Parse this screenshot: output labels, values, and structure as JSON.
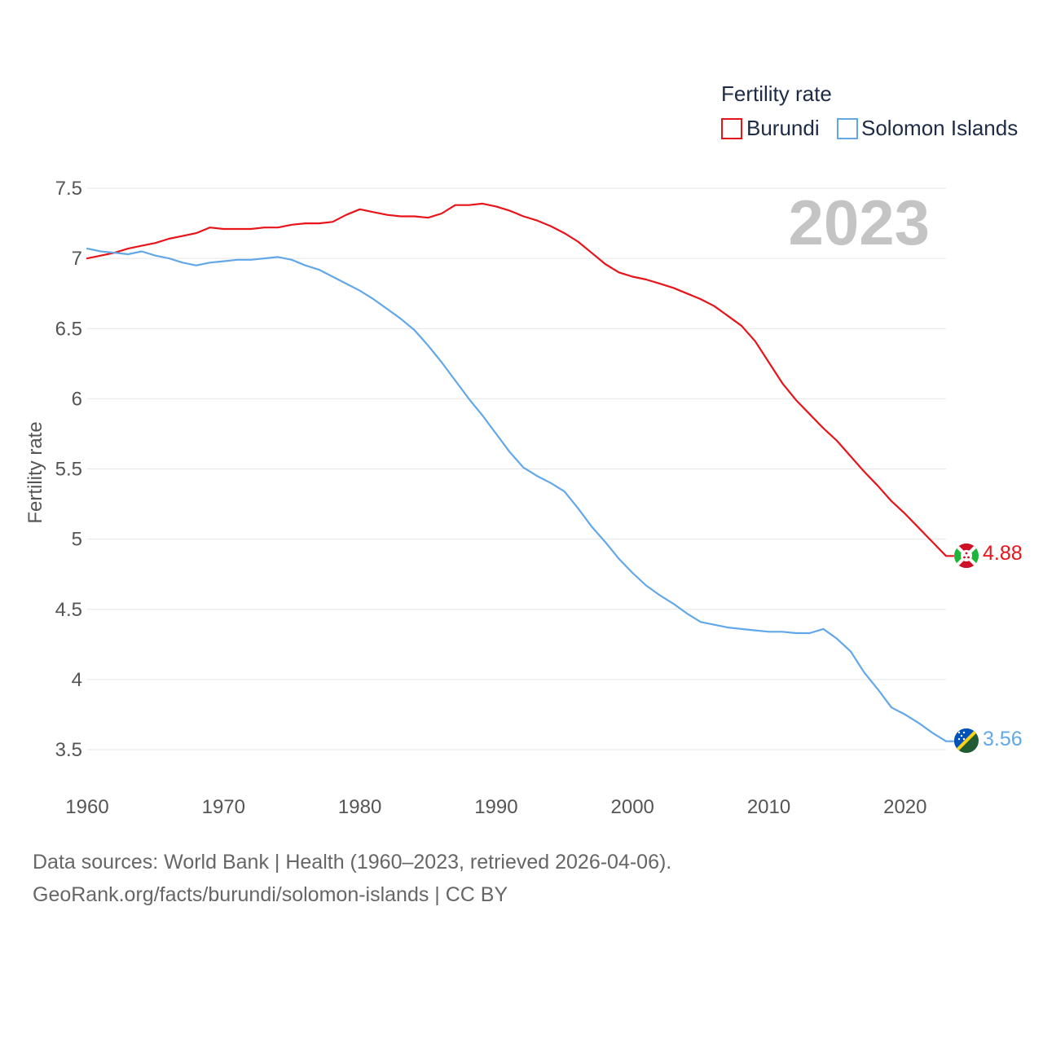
{
  "chart_data": {
    "type": "line",
    "title": "Fertility rate",
    "ylabel": "Fertility rate",
    "xlabel": "",
    "xlim": [
      1960,
      2023
    ],
    "ylim": [
      3.5,
      7.5
    ],
    "x_ticks": [
      1960,
      1970,
      1980,
      1990,
      2000,
      2010,
      2020
    ],
    "y_ticks": [
      3.5,
      4,
      4.5,
      5,
      5.5,
      6,
      6.5,
      7,
      7.5
    ],
    "y_tick_labels": [
      "3.5",
      "4",
      "4.5",
      "5",
      "5.5",
      "6",
      "6.5",
      "7",
      "7.5"
    ],
    "year_stamp": "2023",
    "legend_position": "top-right",
    "grid": true,
    "x": [
      1960,
      1961,
      1962,
      1963,
      1964,
      1965,
      1966,
      1967,
      1968,
      1969,
      1970,
      1971,
      1972,
      1973,
      1974,
      1975,
      1976,
      1977,
      1978,
      1979,
      1980,
      1981,
      1982,
      1983,
      1984,
      1985,
      1986,
      1987,
      1988,
      1989,
      1990,
      1991,
      1992,
      1993,
      1994,
      1995,
      1996,
      1997,
      1998,
      1999,
      2000,
      2001,
      2002,
      2003,
      2004,
      2005,
      2006,
      2007,
      2008,
      2009,
      2010,
      2011,
      2012,
      2013,
      2014,
      2015,
      2016,
      2017,
      2018,
      2019,
      2020,
      2021,
      2022,
      2023
    ],
    "series": [
      {
        "name": "Burundi",
        "color": "#e8141a",
        "end_label": "4.88",
        "flag": "burundi-flag-icon",
        "values": [
          7.0,
          7.02,
          7.04,
          7.07,
          7.09,
          7.11,
          7.14,
          7.16,
          7.18,
          7.22,
          7.21,
          7.21,
          7.21,
          7.22,
          7.22,
          7.24,
          7.25,
          7.25,
          7.26,
          7.31,
          7.35,
          7.33,
          7.31,
          7.3,
          7.3,
          7.29,
          7.32,
          7.38,
          7.38,
          7.39,
          7.37,
          7.34,
          7.3,
          7.27,
          7.23,
          7.18,
          7.12,
          7.04,
          6.96,
          6.9,
          6.87,
          6.85,
          6.82,
          6.79,
          6.75,
          6.71,
          6.66,
          6.59,
          6.52,
          6.41,
          6.26,
          6.11,
          5.99,
          5.89,
          5.79,
          5.7,
          5.59,
          5.48,
          5.38,
          5.27,
          5.18,
          5.08,
          4.98,
          4.88
        ]
      },
      {
        "name": "Solomon Islands",
        "color": "#62a8e8",
        "end_label": "3.56",
        "flag": "solomon-islands-flag-icon",
        "values": [
          7.07,
          7.05,
          7.04,
          7.03,
          7.05,
          7.02,
          7.0,
          6.97,
          6.95,
          6.97,
          6.98,
          6.99,
          6.99,
          7.0,
          7.01,
          6.99,
          6.95,
          6.92,
          6.87,
          6.82,
          6.77,
          6.71,
          6.64,
          6.57,
          6.49,
          6.38,
          6.26,
          6.13,
          6.0,
          5.88,
          5.75,
          5.62,
          5.51,
          5.45,
          5.4,
          5.34,
          5.22,
          5.09,
          4.98,
          4.86,
          4.76,
          4.67,
          4.6,
          4.54,
          4.47,
          4.41,
          4.39,
          4.37,
          4.36,
          4.35,
          4.34,
          4.34,
          4.33,
          4.33,
          4.36,
          4.29,
          4.2,
          4.05,
          3.93,
          3.8,
          3.75,
          3.69,
          3.62,
          3.56
        ]
      }
    ]
  },
  "footer": {
    "line1": "Data sources: World Bank | Health (1960–2023, retrieved 2026-04-06).",
    "line2": "GeoRank.org/facts/burundi/solomon-islands | CC BY"
  }
}
